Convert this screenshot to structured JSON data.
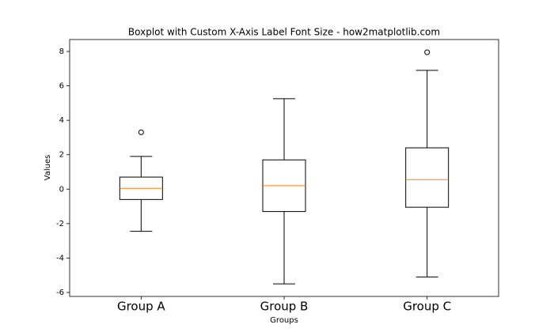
{
  "chart_data": {
    "type": "boxplot",
    "title": "Boxplot with Custom X-Axis Label Font Size - how2matplotlib.com",
    "xlabel": "Groups",
    "ylabel": "Values",
    "categories": [
      "Group A",
      "Group B",
      "Group C"
    ],
    "boxes": [
      {
        "whislo": -2.45,
        "q1": -0.6,
        "med": 0.05,
        "q3": 0.7,
        "whishi": 1.9,
        "fliers": [
          3.3
        ]
      },
      {
        "whislo": -5.5,
        "q1": -1.3,
        "med": 0.2,
        "q3": 1.7,
        "whishi": 5.25,
        "fliers": []
      },
      {
        "whislo": -5.1,
        "q1": -1.05,
        "med": 0.55,
        "q3": 2.4,
        "whishi": 6.9,
        "fliers": [
          7.95
        ]
      }
    ],
    "box_color": "#000000",
    "median_color": "#ff7f0e",
    "ylim": [
      -6.23,
      8.69
    ],
    "yticks": [
      -6,
      -4,
      -2,
      0,
      2,
      4,
      6,
      8
    ]
  }
}
